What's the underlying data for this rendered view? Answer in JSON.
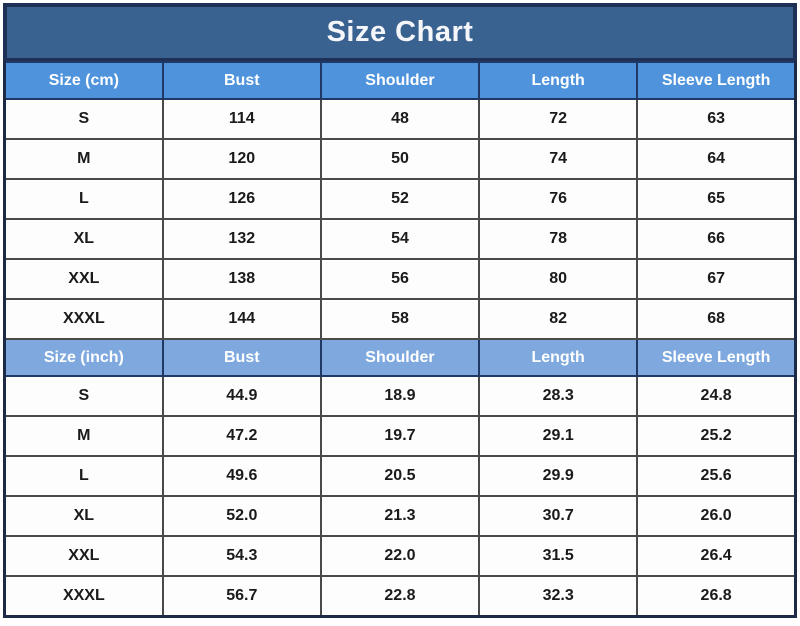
{
  "title": "Size Chart",
  "colors": {
    "title_bg": "#3a6291",
    "title_border": "#1e3055",
    "header_cm_bg": "#4f93dc",
    "header_inch_bg": "#7fa9de",
    "header_text": "#ffffff",
    "header_border": "#1f3864",
    "body_text": "#1a1a1a",
    "grid_border": "#4a4a4a",
    "outer_border": "#1c2a46",
    "row_bg": "#fdfdfd"
  },
  "chart_data": [
    {
      "type": "table",
      "title": "Size Chart (cm)",
      "unit": "cm",
      "columns": [
        "Size (cm)",
        "Bust",
        "Shoulder",
        "Length",
        "Sleeve Length"
      ],
      "rows": [
        [
          "S",
          "114",
          "48",
          "72",
          "63"
        ],
        [
          "M",
          "120",
          "50",
          "74",
          "64"
        ],
        [
          "L",
          "126",
          "52",
          "76",
          "65"
        ],
        [
          "XL",
          "132",
          "54",
          "78",
          "66"
        ],
        [
          "XXL",
          "138",
          "56",
          "80",
          "67"
        ],
        [
          "XXXL",
          "144",
          "58",
          "82",
          "68"
        ]
      ]
    },
    {
      "type": "table",
      "title": "Size Chart (inch)",
      "unit": "inch",
      "columns": [
        "Size (inch)",
        "Bust",
        "Shoulder",
        "Length",
        "Sleeve Length"
      ],
      "rows": [
        [
          "S",
          "44.9",
          "18.9",
          "28.3",
          "24.8"
        ],
        [
          "M",
          "47.2",
          "19.7",
          "29.1",
          "25.2"
        ],
        [
          "L",
          "49.6",
          "20.5",
          "29.9",
          "25.6"
        ],
        [
          "XL",
          "52.0",
          "21.3",
          "30.7",
          "26.0"
        ],
        [
          "XXL",
          "54.3",
          "22.0",
          "31.5",
          "26.4"
        ],
        [
          "XXXL",
          "56.7",
          "22.8",
          "32.3",
          "26.8"
        ]
      ]
    }
  ]
}
